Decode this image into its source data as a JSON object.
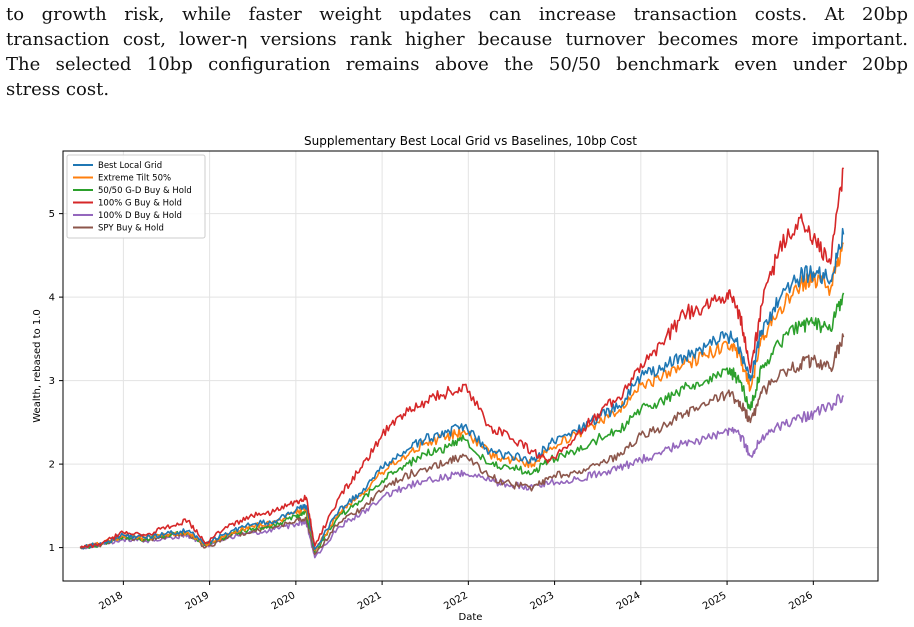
{
  "paragraph": {
    "lines": [
      "to growth risk, while faster weight updates can increase transaction costs.  At 20bp",
      "transaction cost, lower-η versions rank higher because turnover becomes more important.",
      "The selected 10bp configuration remains above the 50/50 benchmark even under 20bp",
      "stress cost."
    ]
  },
  "chart_data": {
    "type": "line",
    "title": "Supplementary Best Local Grid vs Baselines, 10bp Cost",
    "xlabel": "Date",
    "ylabel": "Wealth, rebased to 1.0",
    "xlim": [
      2017.3,
      2026.75
    ],
    "ylim": [
      0.6,
      5.75
    ],
    "xticks": [
      "2018",
      "2019",
      "2020",
      "2021",
      "2022",
      "2023",
      "2024",
      "2025",
      "2026"
    ],
    "yticks": [
      1,
      2,
      3,
      4,
      5
    ],
    "grid": true,
    "legend_position": "upper-left",
    "colors": {
      "best_local_grid": "#1f77b4",
      "extreme_tilt": "#ff7f0e",
      "g_d_5050": "#2ca02c",
      "g_100": "#d62728",
      "d_100": "#9467bd",
      "spy": "#8c564b"
    },
    "x": [
      2017.5,
      2017.75,
      2018.0,
      2018.25,
      2018.5,
      2018.75,
      2018.95,
      2019.25,
      2019.5,
      2019.75,
      2020.0,
      2020.12,
      2020.22,
      2020.5,
      2020.75,
      2021.0,
      2021.25,
      2021.5,
      2021.75,
      2021.95,
      2022.25,
      2022.5,
      2022.75,
      2022.95,
      2023.25,
      2023.5,
      2023.75,
      2024.0,
      2024.25,
      2024.5,
      2024.75,
      2025.0,
      2025.15,
      2025.27,
      2025.4,
      2025.6,
      2025.85,
      2026.0,
      2026.2,
      2026.35
    ],
    "series": [
      {
        "name": "Best Local Grid",
        "color_key": "best_local_grid",
        "values": [
          1.0,
          1.05,
          1.15,
          1.12,
          1.17,
          1.2,
          1.05,
          1.2,
          1.28,
          1.32,
          1.45,
          1.5,
          0.98,
          1.45,
          1.65,
          1.95,
          2.15,
          2.3,
          2.38,
          2.45,
          2.15,
          2.1,
          2.05,
          2.25,
          2.4,
          2.55,
          2.7,
          3.05,
          3.15,
          3.3,
          3.4,
          3.55,
          3.4,
          3.0,
          3.6,
          3.95,
          4.25,
          4.3,
          4.2,
          4.75
        ]
      },
      {
        "name": "Extreme Tilt 50%",
        "color_key": "extreme_tilt",
        "values": [
          1.0,
          1.05,
          1.14,
          1.11,
          1.16,
          1.18,
          1.04,
          1.18,
          1.26,
          1.3,
          1.42,
          1.47,
          0.97,
          1.42,
          1.62,
          1.9,
          2.1,
          2.25,
          2.33,
          2.4,
          2.12,
          2.05,
          2.0,
          2.2,
          2.35,
          2.5,
          2.65,
          2.95,
          3.05,
          3.2,
          3.3,
          3.45,
          3.3,
          2.9,
          3.5,
          3.85,
          4.15,
          4.2,
          4.1,
          4.65
        ]
      },
      {
        "name": "50/50 G-D Buy & Hold",
        "color_key": "g_d_5050",
        "values": [
          1.0,
          1.04,
          1.13,
          1.1,
          1.15,
          1.18,
          1.03,
          1.16,
          1.23,
          1.27,
          1.38,
          1.42,
          0.95,
          1.38,
          1.55,
          1.8,
          1.98,
          2.12,
          2.2,
          2.3,
          2.0,
          1.95,
          1.9,
          2.05,
          2.15,
          2.3,
          2.4,
          2.65,
          2.75,
          2.9,
          3.0,
          3.15,
          3.0,
          2.65,
          3.15,
          3.45,
          3.65,
          3.7,
          3.6,
          4.05
        ]
      },
      {
        "name": "100% G Buy & Hold",
        "color_key": "g_100",
        "values": [
          1.0,
          1.05,
          1.18,
          1.15,
          1.25,
          1.32,
          1.05,
          1.28,
          1.38,
          1.43,
          1.55,
          1.6,
          1.02,
          1.6,
          1.95,
          2.35,
          2.6,
          2.75,
          2.85,
          2.95,
          2.45,
          2.3,
          2.15,
          2.05,
          2.35,
          2.6,
          2.8,
          3.2,
          3.45,
          3.8,
          3.9,
          4.05,
          3.8,
          3.1,
          3.9,
          4.55,
          4.95,
          4.7,
          4.4,
          5.55
        ]
      },
      {
        "name": "100% D Buy & Hold",
        "color_key": "d_100",
        "values": [
          1.0,
          1.04,
          1.1,
          1.08,
          1.12,
          1.15,
          1.02,
          1.12,
          1.18,
          1.22,
          1.28,
          1.3,
          0.88,
          1.25,
          1.4,
          1.6,
          1.72,
          1.8,
          1.85,
          1.9,
          1.8,
          1.75,
          1.72,
          1.78,
          1.82,
          1.88,
          1.95,
          2.05,
          2.15,
          2.25,
          2.3,
          2.4,
          2.35,
          2.1,
          2.3,
          2.45,
          2.55,
          2.6,
          2.7,
          2.82
        ]
      },
      {
        "name": "SPY Buy & Hold",
        "color_key": "spy",
        "values": [
          1.0,
          1.04,
          1.13,
          1.09,
          1.14,
          1.17,
          1.0,
          1.14,
          1.2,
          1.25,
          1.33,
          1.36,
          0.92,
          1.3,
          1.45,
          1.68,
          1.85,
          1.95,
          2.02,
          2.1,
          1.85,
          1.75,
          1.72,
          1.85,
          1.9,
          2.0,
          2.1,
          2.35,
          2.45,
          2.6,
          2.7,
          2.85,
          2.75,
          2.5,
          2.85,
          3.05,
          3.2,
          3.25,
          3.15,
          3.52
        ]
      }
    ]
  }
}
